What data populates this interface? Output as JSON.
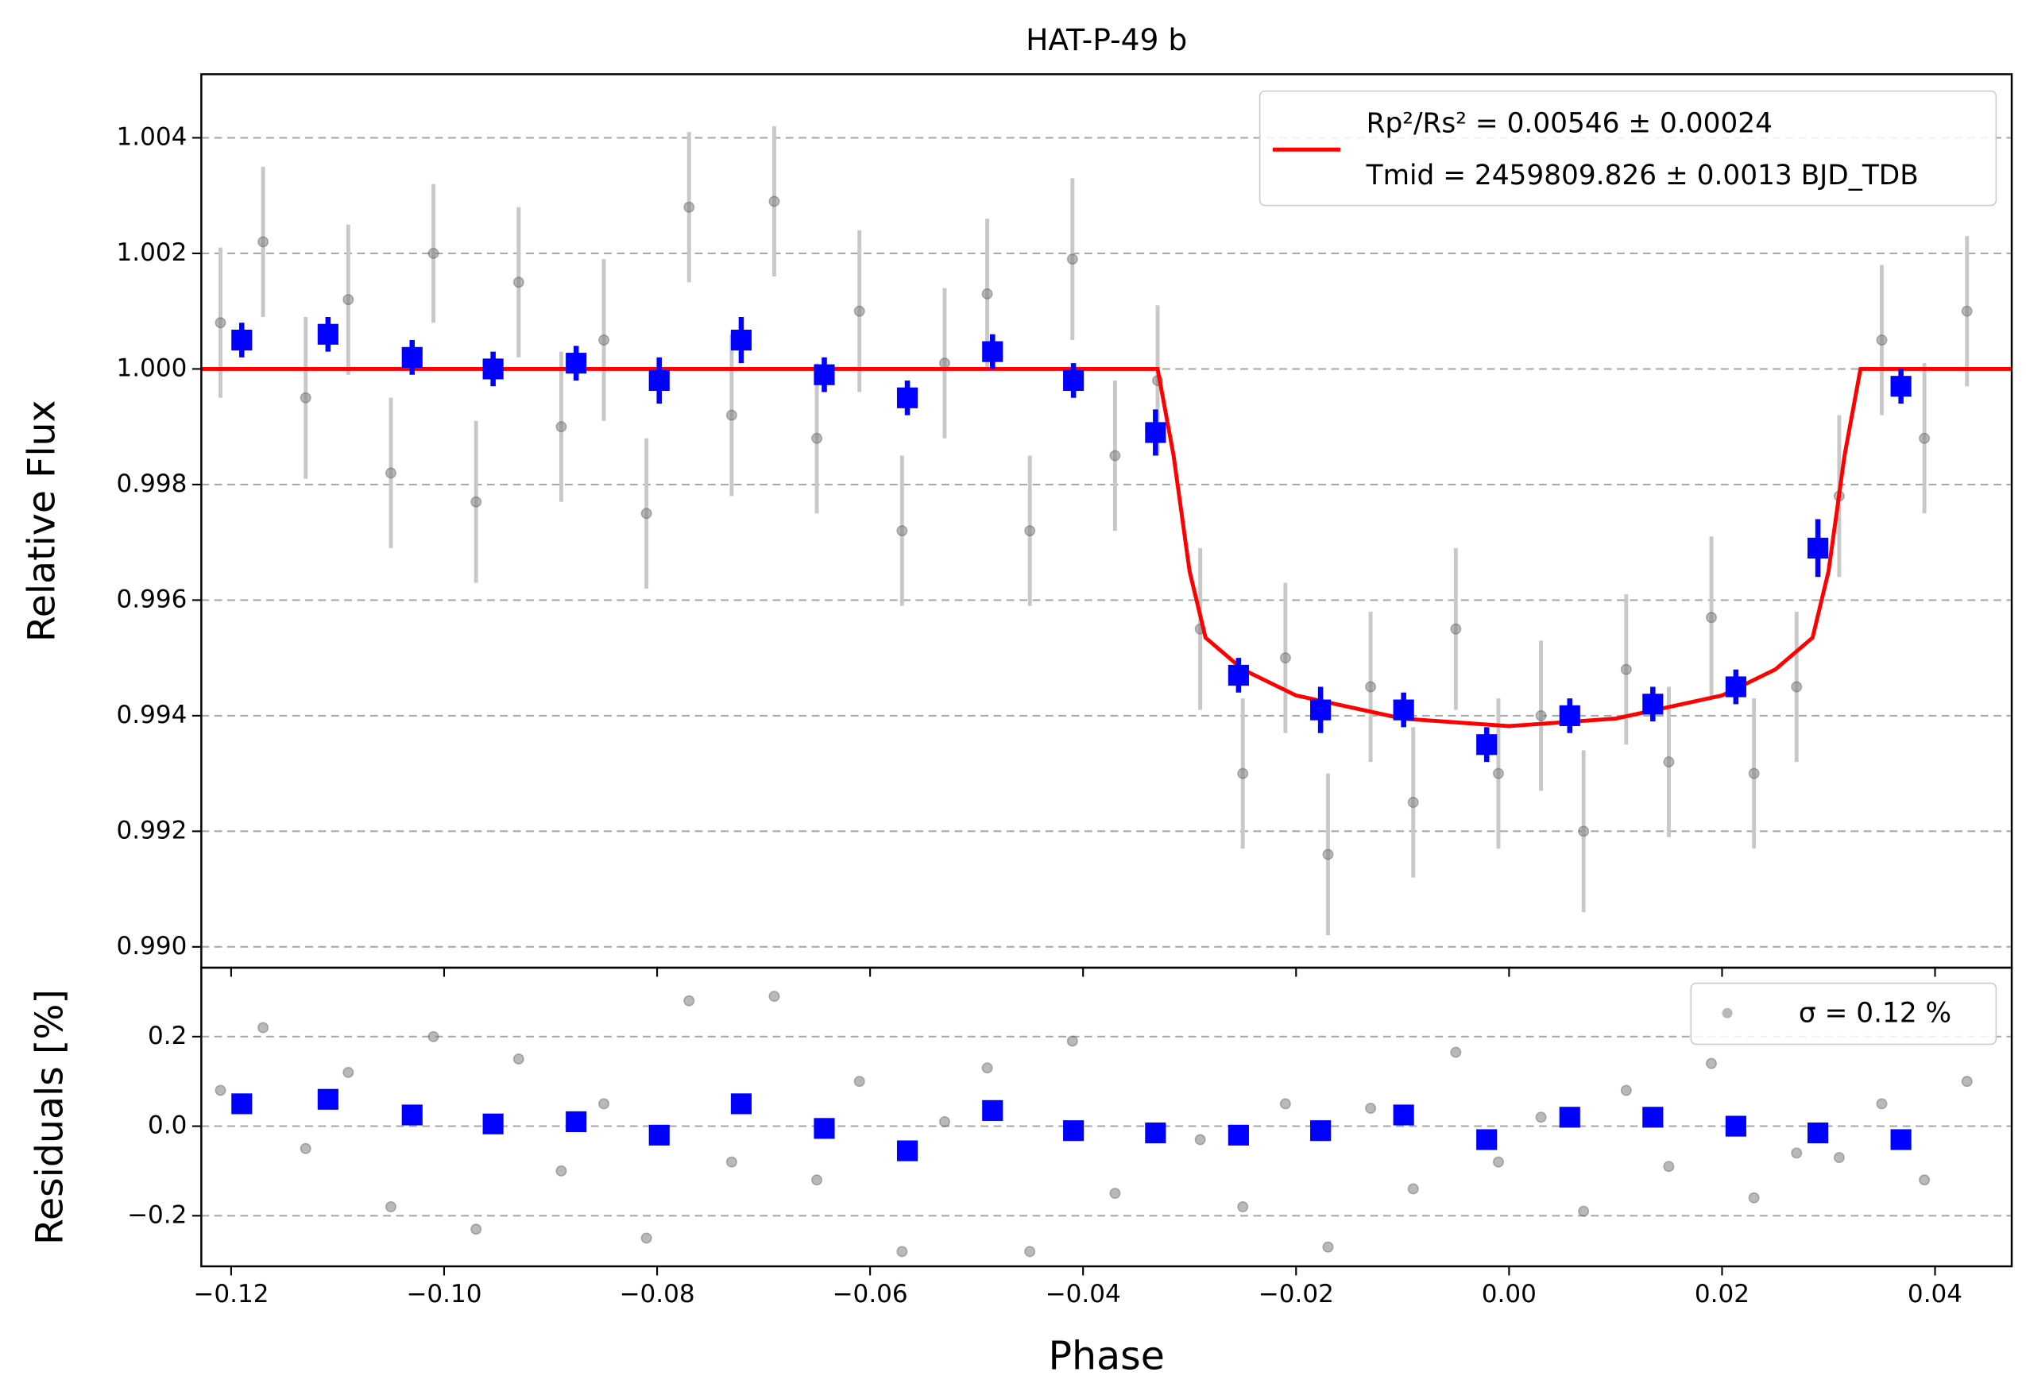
{
  "chart_data": [
    {
      "type": "scatter",
      "title": "HAT-P-49 b",
      "ylabel": "Relative Flux",
      "grid": true,
      "ylim": [
        0.98964,
        1.0051
      ],
      "yticks": [
        {
          "value": 0.99,
          "label": "0.990"
        },
        0.992,
        0.994,
        0.996,
        0.998,
        {
          "value": 1.0,
          "label": "1.000"
        },
        1.002,
        1.004
      ],
      "raw": {
        "color": "#808080",
        "x": [
          -0.121,
          -0.117,
          -0.113,
          -0.109,
          -0.105,
          -0.101,
          -0.097,
          -0.093,
          -0.089,
          -0.085,
          -0.081,
          -0.077,
          -0.073,
          -0.069,
          -0.065,
          -0.061,
          -0.057,
          -0.053,
          -0.049,
          -0.045,
          -0.041,
          -0.037,
          -0.033,
          -0.029,
          -0.025,
          -0.021,
          -0.017,
          -0.013,
          -0.009,
          -0.005,
          -0.001,
          0.003,
          0.007,
          0.011,
          0.015,
          0.019,
          0.023,
          0.027,
          0.031,
          0.035,
          0.039,
          0.043
        ],
        "y": [
          1.0008,
          1.0022,
          0.9995,
          1.0012,
          0.9982,
          1.002,
          0.9977,
          1.0015,
          0.999,
          1.0005,
          0.9975,
          1.0028,
          0.9992,
          1.0029,
          0.9988,
          1.001,
          0.9972,
          1.0001,
          1.0013,
          0.9972,
          1.0019,
          0.9985,
          0.9998,
          0.9955,
          0.993,
          0.995,
          0.9916,
          0.9945,
          0.9925,
          0.9955,
          0.993,
          0.994,
          0.992,
          0.9948,
          0.9932,
          0.9957,
          0.993,
          0.9945,
          0.9978,
          1.0005,
          0.9988,
          1.001
        ],
        "yerr": [
          0.0013,
          0.0013,
          0.0014,
          0.0013,
          0.0013,
          0.0012,
          0.0014,
          0.0013,
          0.0013,
          0.0014,
          0.0013,
          0.0013,
          0.0014,
          0.0013,
          0.0013,
          0.0014,
          0.0013,
          0.0013,
          0.0013,
          0.0013,
          0.0014,
          0.0013,
          0.0013,
          0.0014,
          0.0013,
          0.0013,
          0.0014,
          0.0013,
          0.0013,
          0.0014,
          0.0013,
          0.0013,
          0.0014,
          0.0013,
          0.0013,
          0.0014,
          0.0013,
          0.0013,
          0.0014,
          0.0013,
          0.0013,
          0.0013
        ]
      },
      "binned": {
        "color": "#0000ff",
        "x": [
          -0.119,
          -0.1109,
          -0.103,
          -0.0954,
          -0.0876,
          -0.0798,
          -0.0721,
          -0.0643,
          -0.0565,
          -0.0485,
          -0.0409,
          -0.0332,
          -0.0254,
          -0.0177,
          -0.0099,
          -0.0021,
          0.0057,
          0.0135,
          0.0213,
          0.029,
          0.0368
        ],
        "y": [
          1.0005,
          1.0006,
          1.0002,
          1.0,
          1.0001,
          0.9998,
          1.0005,
          0.9999,
          0.9995,
          1.0003,
          0.9998,
          0.9989,
          0.9947,
          0.9941,
          0.9941,
          0.9935,
          0.994,
          0.9942,
          0.9945,
          0.9969,
          0.9997
        ],
        "yerr": [
          0.0003,
          0.0003,
          0.0003,
          0.0003,
          0.0003,
          0.0004,
          0.0004,
          0.0003,
          0.0003,
          0.0003,
          0.0003,
          0.0004,
          0.0003,
          0.0004,
          0.0003,
          0.0003,
          0.0003,
          0.0003,
          0.0003,
          0.0005,
          0.0003
        ]
      },
      "model": {
        "color": "#ff0000",
        "legend": [
          "Rp²/Rs² = 0.00546 ± 0.00024",
          "Tmid = 2459809.826 ± 0.0013 BJD_TDB"
        ],
        "x": [
          -0.1228,
          -0.033,
          -0.0315,
          -0.03,
          -0.0285,
          -0.025,
          -0.02,
          -0.01,
          0,
          0.01,
          0.02,
          0.025,
          0.0285,
          0.03,
          0.0315,
          0.033,
          0.0472
        ],
        "y": [
          1,
          1,
          0.9985,
          0.9965,
          0.99535,
          0.9948,
          0.99435,
          0.99395,
          0.99382,
          0.99395,
          0.99435,
          0.9948,
          0.99535,
          0.9965,
          0.9985,
          1,
          1
        ]
      }
    },
    {
      "type": "scatter",
      "ylabel": "Residuals [%]",
      "xlabel": "Phase",
      "grid": true,
      "xlim": [
        -0.1228,
        0.0472
      ],
      "ylim": [
        -0.313,
        0.354
      ],
      "xticks": [
        {
          "value": -0.12,
          "label": "−0.12"
        },
        {
          "value": -0.1,
          "label": "−0.10"
        },
        {
          "value": -0.08,
          "label": "−0.08"
        },
        {
          "value": -0.06,
          "label": "−0.06"
        },
        {
          "value": -0.04,
          "label": "−0.04"
        },
        {
          "value": -0.02,
          "label": "−0.02"
        },
        {
          "value": 0,
          "label": "0.00"
        },
        {
          "value": 0.02,
          "label": "0.02"
        },
        {
          "value": 0.04,
          "label": "0.04"
        }
      ],
      "yticks": [
        {
          "value": -0.2,
          "label": "−0.2"
        },
        {
          "value": 0,
          "label": "0.0"
        },
        0.2
      ],
      "legend": "σ = 0.12 %",
      "raw": {
        "y": [
          0.08,
          0.22,
          -0.05,
          0.12,
          -0.18,
          0.2,
          -0.23,
          0.15,
          -0.1,
          0.05,
          -0.25,
          0.28,
          -0.08,
          0.29,
          -0.12,
          0.1,
          -0.28,
          0.01,
          0.13,
          -0.28,
          0.19,
          -0.15,
          -0.02,
          -0.03,
          -0.18,
          0.05,
          -0.27,
          0.04,
          -0.14,
          0.165,
          -0.08,
          0.02,
          -0.19,
          0.08,
          -0.09,
          0.14,
          -0.16,
          -0.06,
          -0.07,
          0.05,
          -0.12,
          0.1
        ]
      },
      "binned": {
        "y": [
          0.05,
          0.06,
          0.025,
          0.005,
          0.01,
          -0.02,
          0.05,
          -0.005,
          -0.055,
          0.035,
          -0.01,
          -0.015,
          -0.02,
          -0.01,
          0.025,
          -0.03,
          0.02,
          0.02,
          0,
          -0.015,
          -0.03
        ]
      }
    }
  ]
}
